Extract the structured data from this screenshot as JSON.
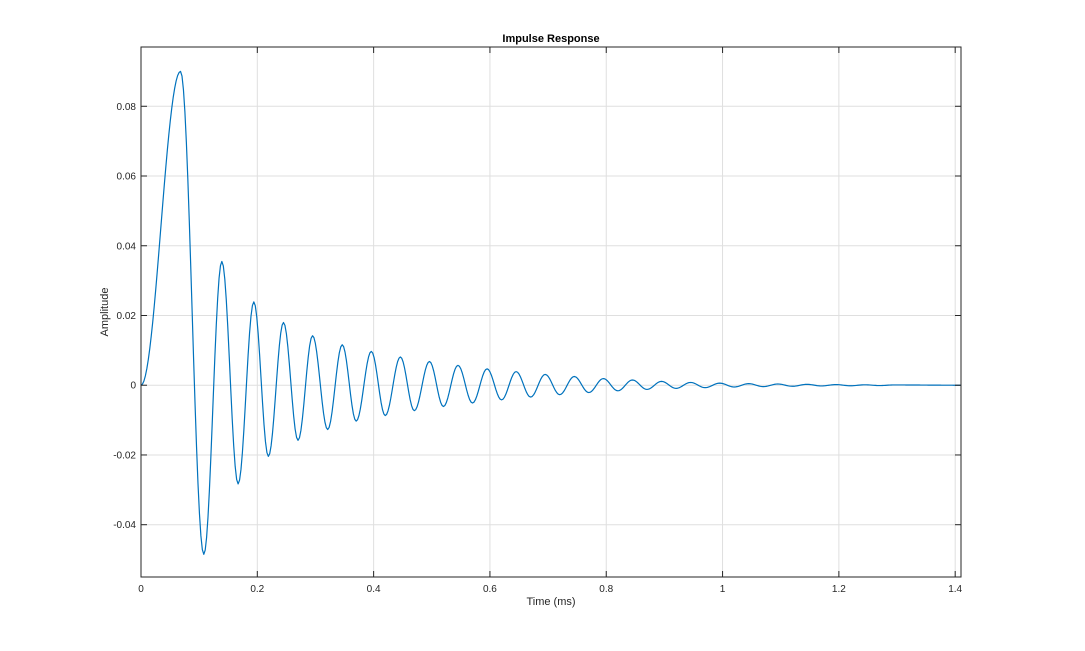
{
  "chart_data": {
    "type": "line",
    "title": "Impulse Response",
    "xlabel": "Time (ms)",
    "ylabel": "Amplitude",
    "xlim": [
      0,
      1.41
    ],
    "ylim": [
      -0.055,
      0.097
    ],
    "grid": true,
    "xticks": [
      0,
      0.2,
      0.4,
      0.6,
      0.8,
      1,
      1.2,
      1.4
    ],
    "xtick_labels": [
      "0",
      "0.2",
      "0.4",
      "0.6",
      "0.8",
      "1",
      "1.2",
      "1.4"
    ],
    "yticks": [
      -0.04,
      -0.02,
      0,
      0.02,
      0.04,
      0.06,
      0.08
    ],
    "ytick_labels": [
      "-0.04",
      "-0.02",
      "0",
      "0.02",
      "0.04",
      "0.06",
      "0.08"
    ],
    "series": [
      {
        "color": "#0072bd",
        "x": [
          0,
          0.068,
          0.108,
          0.139,
          0.167,
          0.194,
          0.219,
          0.245,
          0.27,
          0.295,
          0.321,
          0.346,
          0.37,
          0.396,
          0.42,
          0.446,
          0.47,
          0.496,
          0.52,
          0.545,
          0.57,
          0.595,
          0.62,
          0.645,
          0.67,
          0.695,
          0.72,
          0.745,
          0.77,
          0.795,
          0.82,
          0.845,
          0.87,
          0.895,
          0.92,
          0.945,
          0.97,
          0.995,
          1.02,
          1.045,
          1.07,
          1.095,
          1.12,
          1.145,
          1.17,
          1.195,
          1.22,
          1.245,
          1.27,
          1.295,
          1.41
        ],
        "y": [
          0,
          0.09,
          -0.0485,
          0.0355,
          -0.0283,
          0.0239,
          -0.0204,
          0.018,
          -0.0158,
          0.0142,
          -0.0127,
          0.0116,
          -0.0103,
          0.0097,
          -0.0087,
          0.0081,
          -0.0073,
          0.0068,
          -0.0061,
          0.0057,
          -0.0051,
          0.0047,
          -0.0042,
          0.0039,
          -0.0034,
          0.0031,
          -0.0027,
          0.0025,
          -0.0021,
          0.0019,
          -0.0016,
          0.0015,
          -0.0012,
          0.0011,
          -0.0009,
          0.0008,
          -0.0007,
          0.0006,
          -0.0005,
          0.00045,
          -0.0004,
          0.00035,
          -0.0003,
          0.00025,
          -0.0002,
          0.00018,
          -0.00015,
          0.00012,
          -0.0001,
          8e-05,
          0
        ]
      }
    ]
  }
}
